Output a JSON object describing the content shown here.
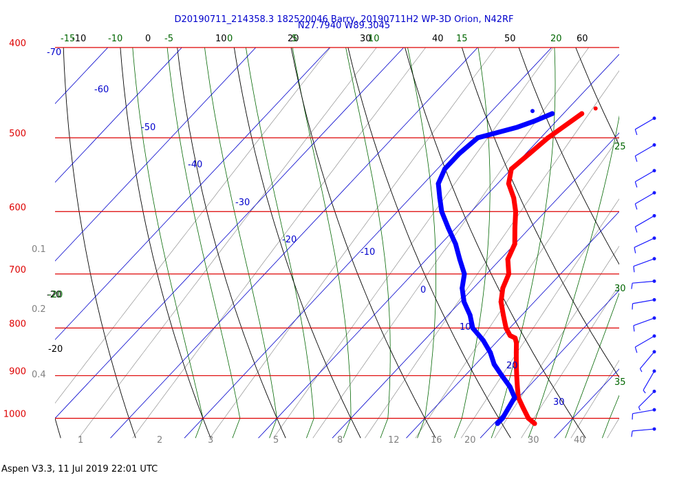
{
  "header": {
    "title_line1": "D20190711_214358.3 182520046 Barry, 20190711H2 WP-3D Orion, N42RF",
    "title_line2": "N27.7940 W89.3045"
  },
  "footer": {
    "text": "Aspen V3.3, 11 Jul 2019  22:01 UTC"
  },
  "colors": {
    "isobar": "#dd0000",
    "isotherm": "#0000cc",
    "dry_adiabat": "#000000",
    "moist_adiabat": "#006600",
    "mixing_ratio": "#808080",
    "temperature": "#ff0000",
    "dewpoint": "#0000ff",
    "wind_barb": "#1a1aff"
  },
  "chart_data": {
    "type": "line",
    "diagram": "skew-T log-P",
    "pressure_range": [
      400,
      1025
    ],
    "isobars": [
      {
        "p": 400,
        "label": "400"
      },
      {
        "p": 500,
        "label": "500"
      },
      {
        "p": 600,
        "label": "600"
      },
      {
        "p": 700,
        "label": "700"
      },
      {
        "p": 800,
        "label": "800"
      },
      {
        "p": 900,
        "label": "900"
      },
      {
        "p": 1000,
        "label": "1000"
      }
    ],
    "isotherm_labels": [
      {
        "t": -70,
        "label": "-70"
      },
      {
        "t": -60,
        "label": "-60"
      },
      {
        "t": -50,
        "label": "-50"
      },
      {
        "t": -40,
        "label": "-40"
      },
      {
        "t": -30,
        "label": "-30"
      },
      {
        "t": -20,
        "label": "-20"
      },
      {
        "t": -10,
        "label": "-10"
      },
      {
        "t": 0,
        "label": "0"
      },
      {
        "t": 10,
        "label": "10"
      },
      {
        "t": 20,
        "label": "20"
      },
      {
        "t": 30,
        "label": "30"
      }
    ],
    "dry_adiabat_labels": [
      "-10",
      "0",
      "10",
      "20",
      "30",
      "40",
      "50",
      "60",
      "-20",
      "-20"
    ],
    "moist_adiabat_labels": [
      "-15",
      "-10",
      "-5",
      "0",
      "5",
      "10",
      "15",
      "20",
      "25",
      "30",
      "35",
      "-20"
    ],
    "mixing_ratio_labels": [
      "1",
      "2",
      "3",
      "5",
      "8",
      "12",
      "16",
      "20",
      "30",
      "40",
      "0.1",
      "0.2",
      "0.4"
    ],
    "series": [
      {
        "name": "Temperature",
        "points": [
          [
            471,
            -7.5
          ],
          [
            490,
            -8.5
          ],
          [
            500,
            -9.0
          ],
          [
            520,
            -9.5
          ],
          [
            540,
            -10.0
          ],
          [
            560,
            -8.5
          ],
          [
            580,
            -6.0
          ],
          [
            600,
            -4.0
          ],
          [
            625,
            -2.0
          ],
          [
            650,
            0.0
          ],
          [
            675,
            1.0
          ],
          [
            700,
            3.0
          ],
          [
            725,
            4.0
          ],
          [
            750,
            5.5
          ],
          [
            775,
            7.5
          ],
          [
            800,
            9.5
          ],
          [
            805,
            10.0
          ],
          [
            810,
            10.5
          ],
          [
            815,
            11.0
          ],
          [
            820,
            12.0
          ],
          [
            830,
            12.8
          ],
          [
            850,
            14.0
          ],
          [
            875,
            15.5
          ],
          [
            900,
            17.0
          ],
          [
            925,
            18.5
          ],
          [
            950,
            20.0
          ],
          [
            975,
            22.0
          ],
          [
            1000,
            24.0
          ],
          [
            1013,
            25.5
          ]
        ]
      },
      {
        "name": "Dewpoint",
        "points": [
          [
            471,
            -11.5
          ],
          [
            480,
            -13.0
          ],
          [
            487,
            -14.5
          ],
          [
            500,
            -18.5
          ],
          [
            520,
            -19.0
          ],
          [
            540,
            -19.0
          ],
          [
            560,
            -18.0
          ],
          [
            580,
            -16.0
          ],
          [
            600,
            -14.0
          ],
          [
            625,
            -11.0
          ],
          [
            650,
            -8.0
          ],
          [
            675,
            -5.5
          ],
          [
            700,
            -3.0
          ],
          [
            725,
            -1.5
          ],
          [
            750,
            0.5
          ],
          [
            775,
            3.0
          ],
          [
            800,
            5.0
          ],
          [
            825,
            8.0
          ],
          [
            850,
            10.5
          ],
          [
            875,
            12.5
          ],
          [
            900,
            15.0
          ],
          [
            925,
            17.5
          ],
          [
            950,
            19.5
          ],
          [
            975,
            20.0
          ],
          [
            1000,
            20.5
          ],
          [
            1013,
            20.5
          ]
        ]
      }
    ],
    "wind_barbs": [
      {
        "p": 470,
        "dir": 240,
        "spd": 10
      },
      {
        "p": 502,
        "dir": 240,
        "spd": 10
      },
      {
        "p": 535,
        "dir": 240,
        "spd": 10
      },
      {
        "p": 565,
        "dir": 240,
        "spd": 10
      },
      {
        "p": 598,
        "dir": 240,
        "spd": 10
      },
      {
        "p": 632,
        "dir": 245,
        "spd": 10
      },
      {
        "p": 665,
        "dir": 250,
        "spd": 10
      },
      {
        "p": 703,
        "dir": 265,
        "spd": 10
      },
      {
        "p": 736,
        "dir": 260,
        "spd": 10
      },
      {
        "p": 770,
        "dir": 250,
        "spd": 10
      },
      {
        "p": 805,
        "dir": 240,
        "spd": 10
      },
      {
        "p": 837,
        "dir": 220,
        "spd": 5
      },
      {
        "p": 878,
        "dir": 210,
        "spd": 5
      },
      {
        "p": 923,
        "dir": 225,
        "spd": 5
      },
      {
        "p": 966,
        "dir": 260,
        "spd": 10
      },
      {
        "p": 1013,
        "dir": 265,
        "spd": 10
      }
    ]
  }
}
